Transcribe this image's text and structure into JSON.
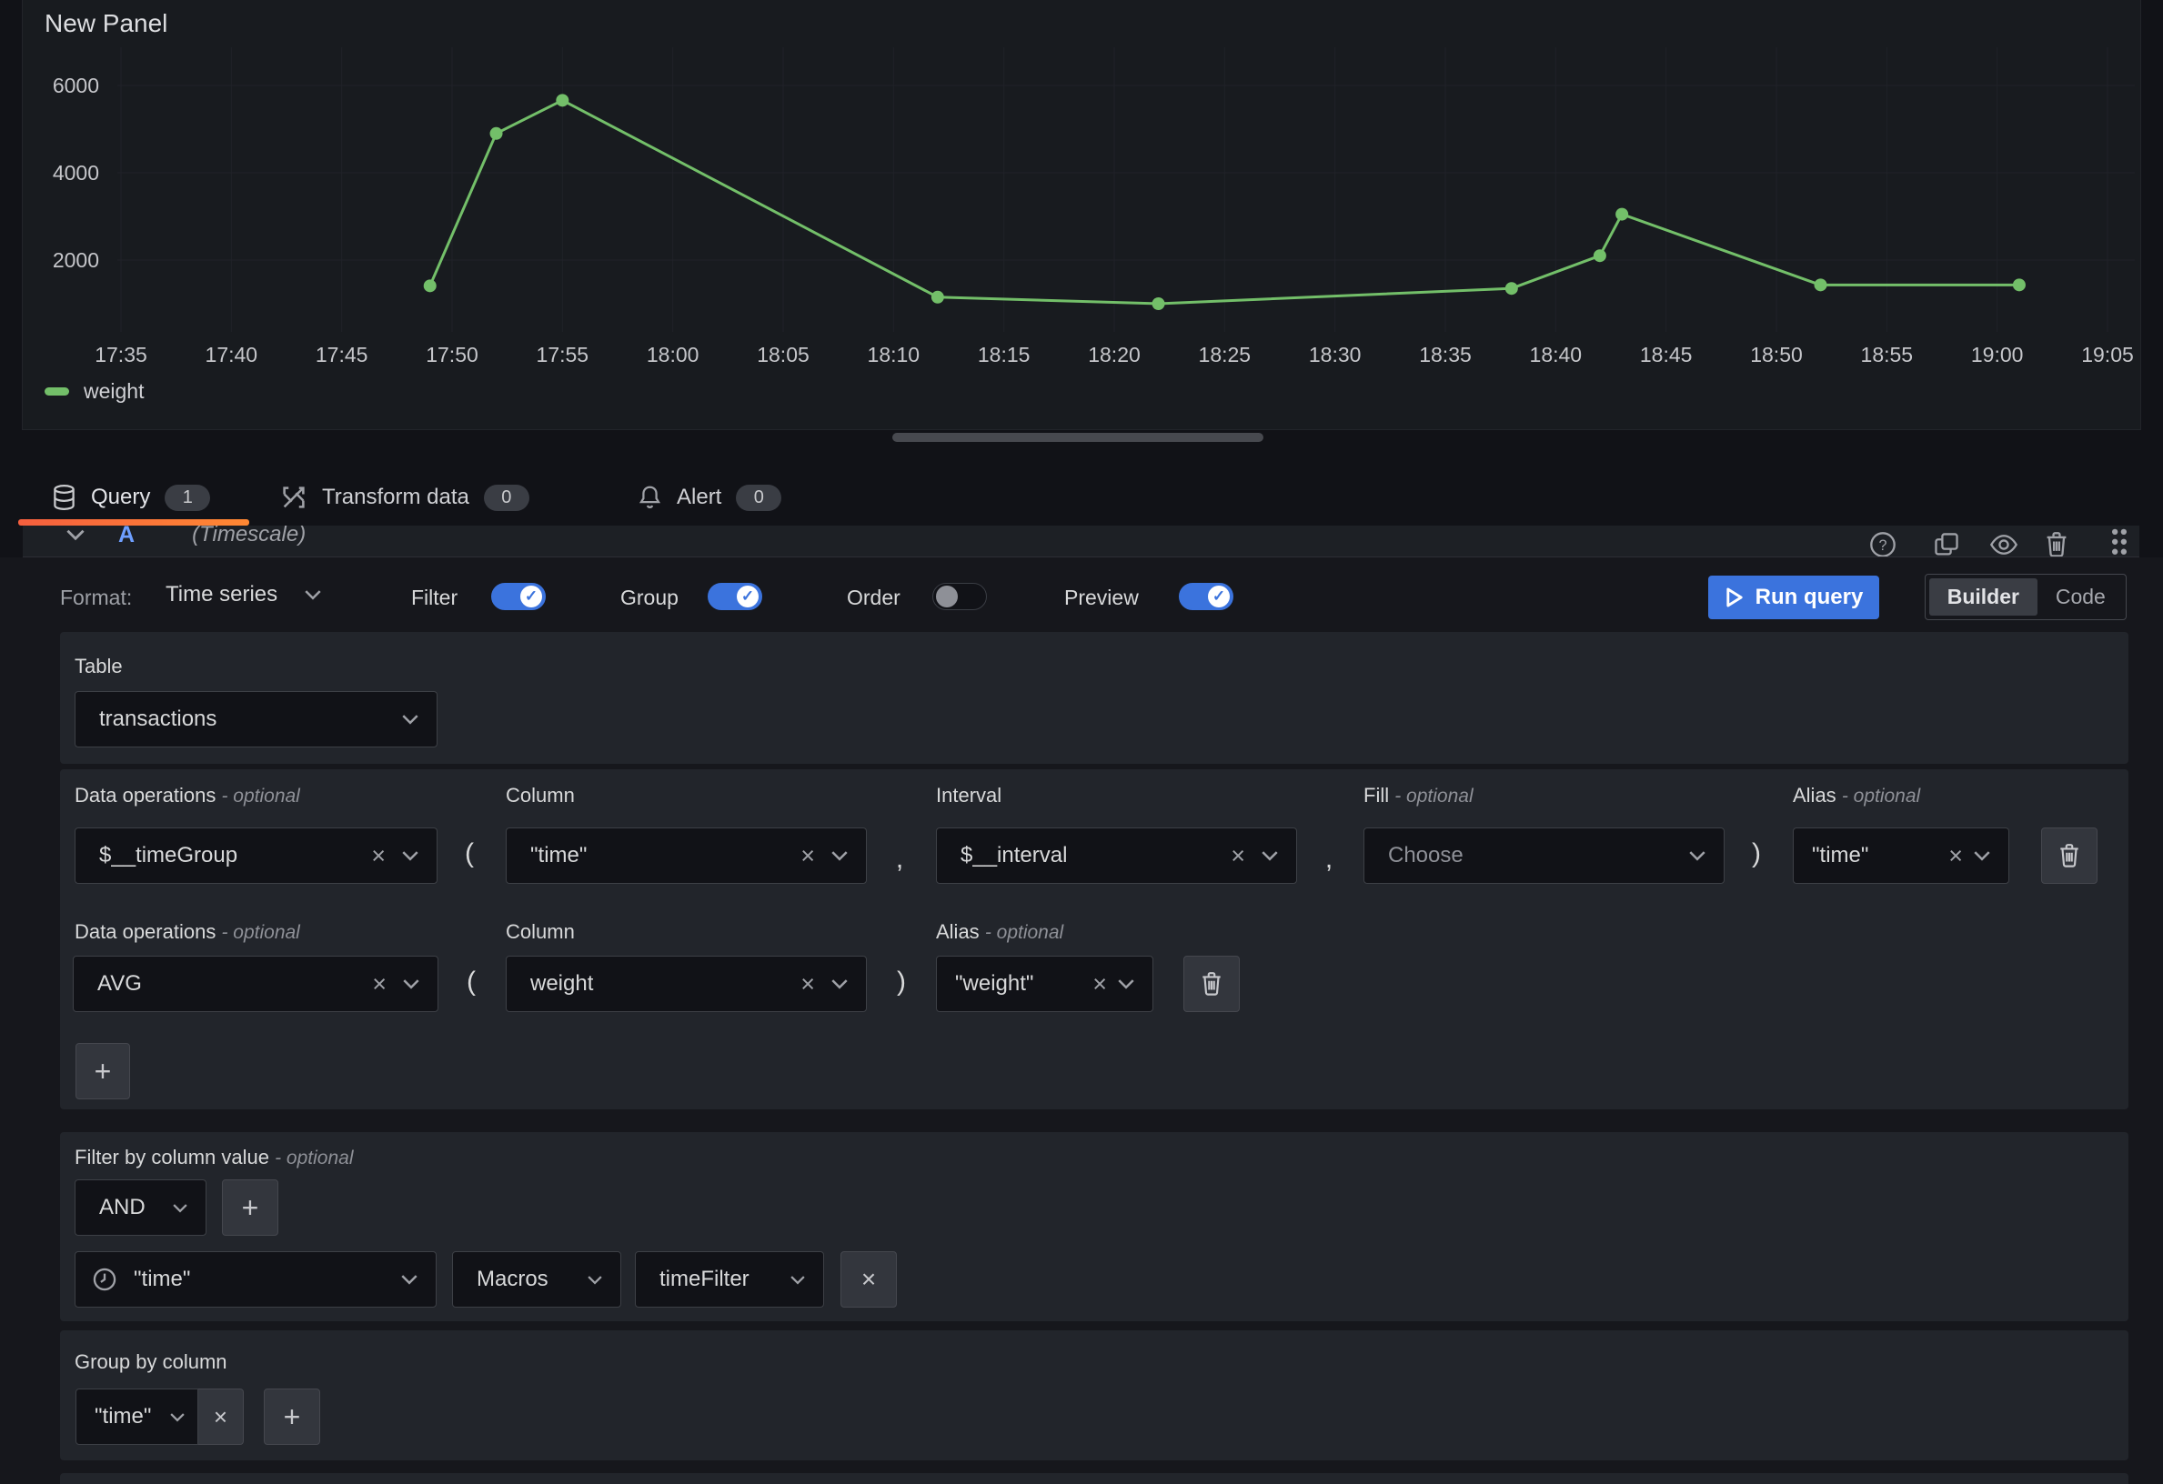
{
  "icons": {
    "clear": "×",
    "plus": "+",
    "check": "✓",
    "question": "?"
  },
  "panel": {
    "title": "New Panel",
    "legend_label": "weight"
  },
  "chart_data": {
    "type": "line",
    "title": "New Panel",
    "xlabel": "",
    "ylabel": "",
    "xlim": [
      "17:35",
      "19:05"
    ],
    "ylim": [
      350,
      6800
    ],
    "grid": true,
    "legend_position": "bottom-left",
    "x_ticks": [
      "17:35",
      "17:40",
      "17:45",
      "17:50",
      "17:55",
      "18:00",
      "18:05",
      "18:10",
      "18:15",
      "18:20",
      "18:25",
      "18:30",
      "18:35",
      "18:40",
      "18:45",
      "18:50",
      "18:55",
      "19:00",
      "19:05"
    ],
    "y_ticks": [
      2000,
      4000,
      6000
    ],
    "series": [
      {
        "name": "weight",
        "color": "#73bf69",
        "points": [
          [
            "17:49",
            1410
          ],
          [
            "17:52",
            4900
          ],
          [
            "17:55",
            5660
          ],
          [
            "18:12",
            1150
          ],
          [
            "18:22",
            1000
          ],
          [
            "18:38",
            1350
          ],
          [
            "18:42",
            2100
          ],
          [
            "18:43",
            3050
          ],
          [
            "18:52",
            1430
          ],
          [
            "19:01",
            1430
          ]
        ]
      }
    ]
  },
  "tabs": [
    {
      "label": "Query",
      "count": "1",
      "active": true
    },
    {
      "label": "Transform data",
      "count": "0",
      "active": false
    },
    {
      "label": "Alert",
      "count": "0",
      "active": false
    }
  ],
  "query_header": {
    "ref_id": "A",
    "datasource": "(Timescale)"
  },
  "toolbar": {
    "format_label": "Format:",
    "format_value": "Time series",
    "filter_label": "Filter",
    "filter_on": true,
    "group_label": "Group",
    "group_on": true,
    "order_label": "Order",
    "order_on": false,
    "preview_label": "Preview",
    "preview_on": true,
    "run_query_label": "Run query",
    "builder_label": "Builder",
    "code_label": "Code"
  },
  "sections": {
    "table": {
      "label": "Table",
      "value": "transactions"
    },
    "select": {
      "row1": {
        "dataop_label": "Data operations",
        "dataop_optional": "- optional",
        "dataop_value": "$__timeGroup",
        "column_label": "Column",
        "column_value": "\"time\"",
        "interval_label": "Interval",
        "interval_value": "$__interval",
        "fill_label": "Fill",
        "fill_optional": "- optional",
        "fill_placeholder": "Choose",
        "alias_label": "Alias",
        "alias_optional": "- optional",
        "alias_value": "\"time\"",
        "open_paren": "(",
        "close_paren": ")",
        "comma1": ",",
        "comma2": ","
      },
      "row2": {
        "dataop_label": "Data operations",
        "dataop_optional": "- optional",
        "dataop_value": "AVG",
        "column_label": "Column",
        "column_value": "weight",
        "alias_label": "Alias",
        "alias_optional": "- optional",
        "alias_value": "\"weight\"",
        "open_paren": "(",
        "close_paren": ")"
      }
    },
    "filter": {
      "label": "Filter by column value",
      "optional": "- optional",
      "operator_value": "AND",
      "column_value": "\"time\"",
      "macros_value": "Macros",
      "macro_fn_value": "timeFilter"
    },
    "groupby": {
      "label": "Group by column",
      "column_value": "\"time\""
    }
  },
  "colors": {
    "accent_blue": "#3b73dd",
    "series_green": "#73bf69",
    "underline_start": "#f55f3e",
    "underline_end": "#ff8833"
  }
}
